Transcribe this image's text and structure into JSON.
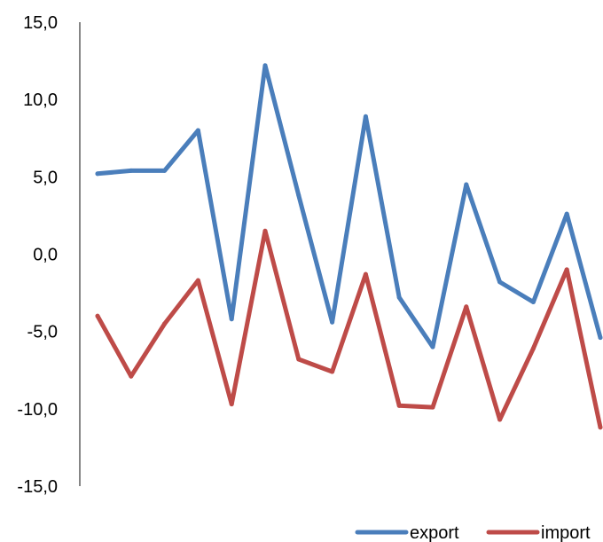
{
  "chart_data": {
    "type": "line",
    "title": "",
    "xlabel": "",
    "ylabel": "",
    "ylim": [
      -15,
      15
    ],
    "yticks": [
      15,
      10,
      5,
      0,
      -5,
      -10,
      -15
    ],
    "ytick_labels": [
      "15,0",
      "10,0",
      "5,0",
      "0,0",
      "-5,0",
      "-10,0",
      "-15,0"
    ],
    "grid": false,
    "legend_position": "bottom-right",
    "series": [
      {
        "name": "export",
        "color": "#4a7ebb",
        "values": [
          5.2,
          5.4,
          5.4,
          8.0,
          -4.2,
          12.2,
          3.8,
          -4.4,
          8.9,
          -2.8,
          -6.0,
          4.5,
          -1.8,
          -3.1,
          2.6,
          -5.4
        ]
      },
      {
        "name": "import",
        "color": "#be4b48",
        "values": [
          -4.0,
          -7.9,
          -4.5,
          -1.7,
          -9.7,
          1.5,
          -6.8,
          -7.6,
          -1.3,
          -9.8,
          -9.9,
          -3.4,
          -10.7,
          -6.1,
          -1.0,
          -11.2
        ]
      }
    ]
  }
}
